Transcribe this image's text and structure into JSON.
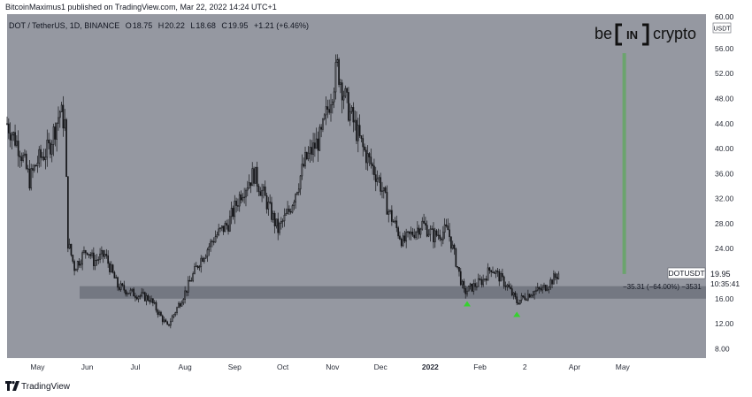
{
  "header": {
    "published_text": "BitcoinMaximus1 published on TradingView.com, Mar 22, 2022 14:24 UTC+1"
  },
  "legend": {
    "symbol": "DOT / TetherUS, 1D, BINANCE",
    "o_label": "O",
    "o_value": "18.75",
    "h_label": "H",
    "h_value": "20.22",
    "l_label": "L",
    "l_value": "18.68",
    "c_label": "C",
    "c_value": "19.95",
    "change": "+1.21 (+6.46%)"
  },
  "watermark": {
    "left": "be",
    "middle": "IN",
    "right": "crypto"
  },
  "price_axis": {
    "currency": "USDT",
    "top_tick": "60.00"
  },
  "price_tag": {
    "symbol": "DOTUSDT",
    "price": "19.95",
    "countdown": "10:35:41"
  },
  "measure": {
    "label": "−35.31 (−64.00%) −3531"
  },
  "footer": {
    "brand": "TradingView"
  },
  "colors": {
    "background": "#9598a1",
    "support_zone": "#6f727c",
    "candles": "#141518",
    "green_arrow": "#36d12f",
    "green_bar": "#5ea85c"
  },
  "chart_data": {
    "type": "candlestick",
    "symbol": "DOTUSDT",
    "interval": "1D",
    "y_ticks": [
      8,
      12,
      16,
      20,
      24,
      28,
      32,
      36,
      40,
      44,
      48,
      52,
      56
    ],
    "ylim": [
      6.5,
      61.5
    ],
    "x_ticks": [
      "May",
      "Jun",
      "Jul",
      "Aug",
      "Sep",
      "Oct",
      "Nov",
      "Dec",
      "2022",
      "Feb",
      "2",
      "Apr",
      "May"
    ],
    "x_range": [
      "2021-04-12",
      "2022-06-22"
    ],
    "support_zone": [
      16.0,
      18.0
    ],
    "last_price": 19.95,
    "price_path": [
      [
        "2021-04-12",
        44
      ],
      [
        "2021-04-20",
        40
      ],
      [
        "2021-04-26",
        35
      ],
      [
        "2021-05-01",
        38
      ],
      [
        "2021-05-08",
        40
      ],
      [
        "2021-05-15",
        46
      ],
      [
        "2021-05-18",
        44
      ],
      [
        "2021-05-20",
        25
      ],
      [
        "2021-05-24",
        21
      ],
      [
        "2021-06-01",
        24
      ],
      [
        "2021-06-05",
        22
      ],
      [
        "2021-06-12",
        23
      ],
      [
        "2021-06-20",
        18
      ],
      [
        "2021-06-28",
        17
      ],
      [
        "2021-07-10",
        16
      ],
      [
        "2021-07-21",
        11.5
      ],
      [
        "2021-08-01",
        17
      ],
      [
        "2021-08-10",
        22
      ],
      [
        "2021-08-20",
        26
      ],
      [
        "2021-08-28",
        28
      ],
      [
        "2021-09-05",
        33
      ],
      [
        "2021-09-13",
        36
      ],
      [
        "2021-09-20",
        32
      ],
      [
        "2021-09-28",
        27
      ],
      [
        "2021-10-05",
        30
      ],
      [
        "2021-10-15",
        38
      ],
      [
        "2021-10-25",
        42
      ],
      [
        "2021-11-04",
        53
      ],
      [
        "2021-11-10",
        47
      ],
      [
        "2021-11-20",
        40
      ],
      [
        "2021-11-30",
        35
      ],
      [
        "2021-12-06",
        30
      ],
      [
        "2021-12-15",
        25
      ],
      [
        "2021-12-27",
        28
      ],
      [
        "2022-01-03",
        26
      ],
      [
        "2022-01-12",
        27
      ],
      [
        "2022-01-22",
        17
      ],
      [
        "2022-02-03",
        19
      ],
      [
        "2022-02-08",
        21
      ],
      [
        "2022-02-18",
        18
      ],
      [
        "2022-02-24",
        15.5
      ],
      [
        "2022-03-05",
        17
      ],
      [
        "2022-03-12",
        17.5
      ],
      [
        "2022-03-22",
        19.95
      ]
    ],
    "markers": [
      {
        "type": "arrow-up",
        "date": "2022-01-24",
        "price": 15.2
      },
      {
        "type": "arrow-up",
        "date": "2022-02-24",
        "price": 13.5
      }
    ],
    "measure_bar": {
      "date": "2022-05-02",
      "from": 19.95,
      "to": 55.26
    }
  }
}
